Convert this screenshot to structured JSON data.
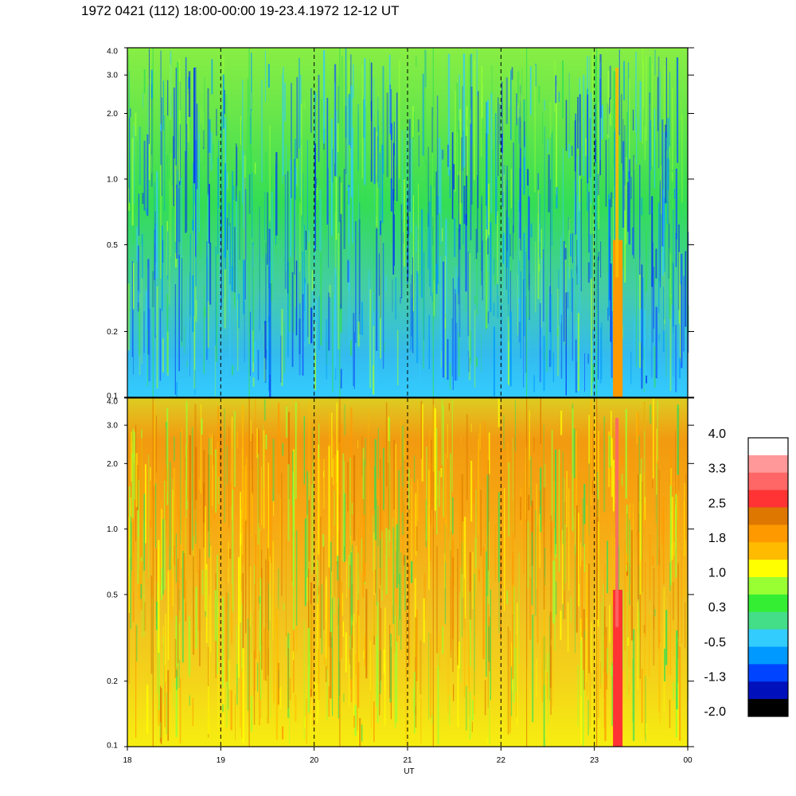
{
  "header": {
    "title": "1972 0421 (112) 18:00-00:00 19-23.4.1972  12-12 UT"
  },
  "chart_data": [
    {
      "type": "heatmap",
      "title": "",
      "xlabel": "",
      "ylabel": "",
      "x_ticks": [
        "18",
        "19",
        "20",
        "21",
        "22",
        "23",
        "00"
      ],
      "x_range": [
        18,
        24
      ],
      "y_scale": "log",
      "y_ticks": [
        "0.1",
        "0.2",
        "0.5",
        "1.0",
        "2.0",
        "3.0",
        "4.0"
      ],
      "y_range": [
        0.1,
        4.0
      ],
      "dominant_level": -0.1,
      "grid": "dashed vertical lines at each hour"
    },
    {
      "type": "heatmap",
      "title": "",
      "xlabel": "UT",
      "ylabel": "",
      "x_ticks": [
        "18",
        "19",
        "20",
        "21",
        "22",
        "23",
        "00"
      ],
      "x_range": [
        18,
        24
      ],
      "y_scale": "log",
      "y_ticks": [
        "0.1",
        "0.2",
        "0.5",
        "1.0",
        "2.0",
        "3.0",
        "4.0"
      ],
      "y_range": [
        0.1,
        4.0
      ],
      "dominant_level": 1.3,
      "grid": "dashed vertical lines at each hour"
    }
  ],
  "colorbar": {
    "labels": [
      "4.0",
      "3.3",
      "2.5",
      "1.8",
      "1.0",
      "0.3",
      "-0.5",
      "-1.3",
      "-2.0"
    ],
    "colors": [
      "#ffffff",
      "#ff9999",
      "#ff6666",
      "#ff3333",
      "#dd7700",
      "#ff9900",
      "#ffbb00",
      "#ffff00",
      "#99ff33",
      "#33ee33",
      "#44dd88",
      "#33ccff",
      "#0099ff",
      "#0044ff",
      "#0011bb",
      "#000000"
    ]
  }
}
